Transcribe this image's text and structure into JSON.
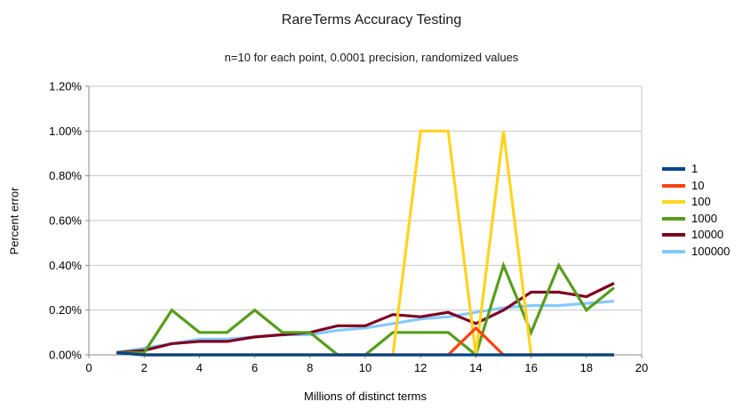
{
  "chart": {
    "title": "RareTerms Accuracy Testing",
    "subtitle": "n=10 for each point, 0.0001 precision, randomized values",
    "xlabel": "Millions of distinct terms",
    "ylabel": "Percent error"
  },
  "chart_data": {
    "type": "line",
    "title": "RareTerms Accuracy Testing",
    "subtitle": "n=10 for each point, 0.0001 precision, randomized values",
    "xlabel": "Millions of distinct terms",
    "ylabel": "Percent error",
    "x": [
      1,
      2,
      3,
      4,
      5,
      6,
      7,
      8,
      9,
      10,
      11,
      12,
      13,
      14,
      15,
      16,
      17,
      18,
      19
    ],
    "series": [
      {
        "name": "1",
        "color": "#004586",
        "values_percent": [
          0.01,
          0,
          0,
          0,
          0,
          0,
          0,
          0,
          0,
          0,
          0,
          0,
          0,
          0,
          0,
          0,
          0,
          0,
          0
        ]
      },
      {
        "name": "10",
        "color": "#FF420E",
        "values_percent": [
          0.01,
          0,
          0,
          0,
          0,
          0,
          0,
          0,
          0,
          0,
          0,
          0,
          0,
          0.12,
          0,
          0,
          0,
          0,
          0
        ]
      },
      {
        "name": "100",
        "color": "#FFD320",
        "values_percent": [
          0.01,
          0,
          0,
          0,
          0,
          0,
          0,
          0,
          0,
          0,
          0,
          1.0,
          1.0,
          0,
          1.0,
          0,
          0,
          0,
          0
        ]
      },
      {
        "name": "1000",
        "color": "#579D1C",
        "values_percent": [
          0.01,
          0.01,
          0.2,
          0.1,
          0.1,
          0.2,
          0.1,
          0.1,
          0,
          0,
          0.1,
          0.1,
          0.1,
          0,
          0.4,
          0.1,
          0.4,
          0.2,
          0.3
        ]
      },
      {
        "name": "10000",
        "color": "#7E0021",
        "values_percent": [
          0.01,
          0.02,
          0.05,
          0.06,
          0.06,
          0.08,
          0.09,
          0.1,
          0.13,
          0.13,
          0.18,
          0.17,
          0.19,
          0.14,
          0.2,
          0.28,
          0.28,
          0.26,
          0.32
        ]
      },
      {
        "name": "100000",
        "color": "#83CAFF",
        "values_percent": [
          0.01,
          0.03,
          0.05,
          0.07,
          0.07,
          0.08,
          0.09,
          0.09,
          0.11,
          0.12,
          0.14,
          0.16,
          0.17,
          0.19,
          0.21,
          0.22,
          0.22,
          0.23,
          0.24
        ]
      }
    ],
    "xlim": [
      0,
      20
    ],
    "ylim_percent": [
      0,
      1.2
    ],
    "x_tick_labels": [
      "0",
      "2",
      "4",
      "6",
      "8",
      "10",
      "12",
      "14",
      "16",
      "18",
      "20"
    ],
    "y_tick_labels": [
      "0.00%",
      "0.20%",
      "0.40%",
      "0.60%",
      "0.80%",
      "1.00%",
      "1.20%"
    ],
    "grid": "horizontal",
    "legend_position": "right"
  },
  "style_colors": {
    "gridline": "#c6c6c6",
    "axis": "#8a8a8a",
    "text": "#000000",
    "background": "#ffffff"
  }
}
